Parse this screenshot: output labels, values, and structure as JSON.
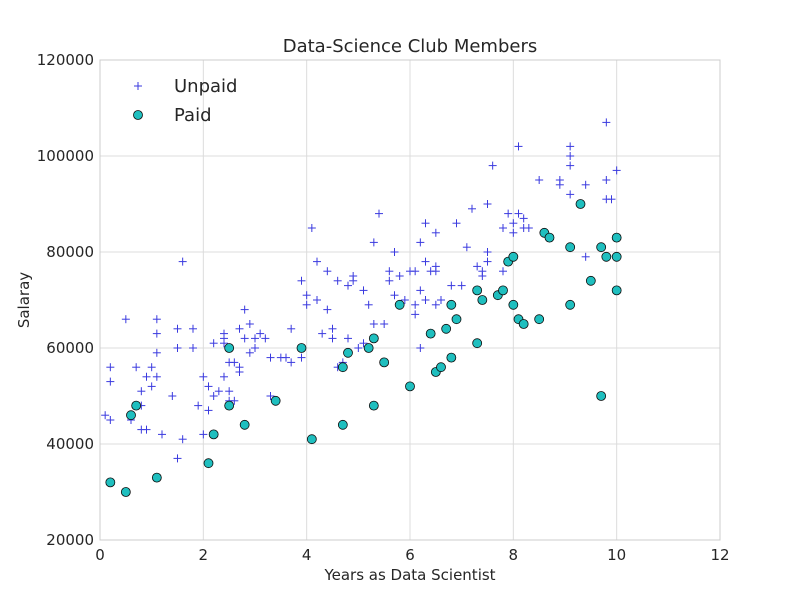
{
  "chart_data": {
    "type": "scatter",
    "title": "Data-Science Club Members",
    "xlabel": "Years as Data Scientist",
    "ylabel": "Salaray",
    "xlim": [
      0,
      12
    ],
    "ylim": [
      20000,
      120000
    ],
    "xticks": [
      "0",
      "2",
      "4",
      "6",
      "8",
      "10",
      "12"
    ],
    "yticks": [
      "20000",
      "40000",
      "60000",
      "80000",
      "100000",
      "120000"
    ],
    "grid": true,
    "legend_position": "top-left",
    "colors": {
      "unpaid": "#3a3adf",
      "paid_fill": "#1fbfbf",
      "paid_edge": "#0c0c0c",
      "grid": "#dcdcdc",
      "frame": "#cccccc"
    },
    "series": [
      {
        "name": "Unpaid",
        "marker": "plus",
        "points": [
          [
            0.1,
            46000
          ],
          [
            0.2,
            45000
          ],
          [
            0.2,
            53000
          ],
          [
            0.2,
            56000
          ],
          [
            0.5,
            66000
          ],
          [
            0.6,
            45000
          ],
          [
            0.7,
            56000
          ],
          [
            0.8,
            51000
          ],
          [
            0.8,
            43000
          ],
          [
            0.8,
            48000
          ],
          [
            0.9,
            43000
          ],
          [
            0.9,
            54000
          ],
          [
            1.0,
            56000
          ],
          [
            1.0,
            52000
          ],
          [
            1.1,
            66000
          ],
          [
            1.1,
            63000
          ],
          [
            1.1,
            59000
          ],
          [
            1.1,
            54000
          ],
          [
            1.2,
            42000
          ],
          [
            1.4,
            50000
          ],
          [
            1.5,
            64000
          ],
          [
            1.5,
            60000
          ],
          [
            1.5,
            37000
          ],
          [
            1.6,
            78000
          ],
          [
            1.6,
            41000
          ],
          [
            1.8,
            64000
          ],
          [
            1.8,
            60000
          ],
          [
            1.9,
            48000
          ],
          [
            2.0,
            54000
          ],
          [
            2.0,
            42000
          ],
          [
            2.1,
            52000
          ],
          [
            2.1,
            47000
          ],
          [
            2.2,
            61000
          ],
          [
            2.2,
            50000
          ],
          [
            2.3,
            51000
          ],
          [
            2.4,
            62000
          ],
          [
            2.4,
            63000
          ],
          [
            2.4,
            61000
          ],
          [
            2.4,
            54000
          ],
          [
            2.5,
            57000
          ],
          [
            2.5,
            51000
          ],
          [
            2.5,
            49000
          ],
          [
            2.6,
            49000
          ],
          [
            2.6,
            57000
          ],
          [
            2.7,
            55000
          ],
          [
            2.7,
            56000
          ],
          [
            2.7,
            64000
          ],
          [
            2.8,
            68000
          ],
          [
            2.8,
            62000
          ],
          [
            2.9,
            59000
          ],
          [
            2.9,
            65000
          ],
          [
            3.0,
            60000
          ],
          [
            3.0,
            62000
          ],
          [
            3.1,
            63000
          ],
          [
            3.2,
            62000
          ],
          [
            3.3,
            58000
          ],
          [
            3.3,
            50000
          ],
          [
            3.5,
            58000
          ],
          [
            3.6,
            58000
          ],
          [
            3.7,
            64000
          ],
          [
            3.7,
            57000
          ],
          [
            3.9,
            74000
          ],
          [
            3.9,
            58000
          ],
          [
            4.0,
            71000
          ],
          [
            4.0,
            69000
          ],
          [
            4.1,
            85000
          ],
          [
            4.2,
            70000
          ],
          [
            4.2,
            78000
          ],
          [
            4.3,
            63000
          ],
          [
            4.4,
            76000
          ],
          [
            4.4,
            68000
          ],
          [
            4.5,
            62000
          ],
          [
            4.5,
            64000
          ],
          [
            4.6,
            56000
          ],
          [
            4.6,
            74000
          ],
          [
            4.7,
            57000
          ],
          [
            4.8,
            62000
          ],
          [
            4.8,
            73000
          ],
          [
            4.9,
            75000
          ],
          [
            4.9,
            74000
          ],
          [
            5.0,
            60000
          ],
          [
            5.1,
            72000
          ],
          [
            5.1,
            61000
          ],
          [
            5.2,
            69000
          ],
          [
            5.3,
            65000
          ],
          [
            5.3,
            82000
          ],
          [
            5.4,
            88000
          ],
          [
            5.5,
            65000
          ],
          [
            5.6,
            76000
          ],
          [
            5.6,
            74000
          ],
          [
            5.7,
            80000
          ],
          [
            5.7,
            71000
          ],
          [
            5.8,
            75000
          ],
          [
            5.9,
            70000
          ],
          [
            6.0,
            76000
          ],
          [
            6.1,
            76000
          ],
          [
            6.1,
            69000
          ],
          [
            6.1,
            67000
          ],
          [
            6.2,
            60000
          ],
          [
            6.2,
            82000
          ],
          [
            6.2,
            72000
          ],
          [
            6.3,
            70000
          ],
          [
            6.3,
            86000
          ],
          [
            6.3,
            78000
          ],
          [
            6.4,
            76000
          ],
          [
            6.5,
            84000
          ],
          [
            6.5,
            77000
          ],
          [
            6.5,
            76000
          ],
          [
            6.5,
            69000
          ],
          [
            6.6,
            70000
          ],
          [
            6.8,
            73000
          ],
          [
            6.9,
            86000
          ],
          [
            7.0,
            73000
          ],
          [
            7.1,
            81000
          ],
          [
            7.2,
            89000
          ],
          [
            7.3,
            77000
          ],
          [
            7.4,
            76000
          ],
          [
            7.4,
            75000
          ],
          [
            7.5,
            90000
          ],
          [
            7.5,
            80000
          ],
          [
            7.5,
            78000
          ],
          [
            7.6,
            98000
          ],
          [
            7.8,
            85000
          ],
          [
            7.8,
            76000
          ],
          [
            7.9,
            88000
          ],
          [
            8.0,
            86000
          ],
          [
            8.0,
            84000
          ],
          [
            8.1,
            102000
          ],
          [
            8.1,
            88000
          ],
          [
            8.2,
            87000
          ],
          [
            8.2,
            85000
          ],
          [
            8.3,
            85000
          ],
          [
            8.5,
            95000
          ],
          [
            8.9,
            95000
          ],
          [
            8.9,
            94000
          ],
          [
            9.1,
            102000
          ],
          [
            9.1,
            100000
          ],
          [
            9.1,
            98000
          ],
          [
            9.1,
            92000
          ],
          [
            9.4,
            94000
          ],
          [
            9.4,
            79000
          ],
          [
            9.8,
            107000
          ],
          [
            9.8,
            95000
          ],
          [
            9.8,
            91000
          ],
          [
            9.9,
            91000
          ],
          [
            10.0,
            97000
          ]
        ]
      },
      {
        "name": "Paid",
        "marker": "circle",
        "points": [
          [
            0.2,
            32000
          ],
          [
            0.5,
            30000
          ],
          [
            0.6,
            46000
          ],
          [
            0.7,
            48000
          ],
          [
            1.1,
            33000
          ],
          [
            2.1,
            36000
          ],
          [
            2.2,
            42000
          ],
          [
            2.5,
            48000
          ],
          [
            2.5,
            60000
          ],
          [
            2.8,
            44000
          ],
          [
            3.4,
            49000
          ],
          [
            3.9,
            60000
          ],
          [
            4.1,
            41000
          ],
          [
            4.7,
            44000
          ],
          [
            4.7,
            56000
          ],
          [
            4.8,
            59000
          ],
          [
            5.2,
            60000
          ],
          [
            5.3,
            48000
          ],
          [
            5.3,
            62000
          ],
          [
            5.5,
            57000
          ],
          [
            5.8,
            69000
          ],
          [
            6.0,
            52000
          ],
          [
            6.4,
            63000
          ],
          [
            6.5,
            55000
          ],
          [
            6.6,
            56000
          ],
          [
            6.7,
            64000
          ],
          [
            6.8,
            58000
          ],
          [
            6.8,
            69000
          ],
          [
            6.9,
            66000
          ],
          [
            7.3,
            61000
          ],
          [
            7.3,
            72000
          ],
          [
            7.4,
            70000
          ],
          [
            7.7,
            71000
          ],
          [
            7.8,
            72000
          ],
          [
            7.9,
            78000
          ],
          [
            8.0,
            79000
          ],
          [
            8.0,
            69000
          ],
          [
            8.1,
            66000
          ],
          [
            8.2,
            65000
          ],
          [
            8.5,
            66000
          ],
          [
            8.6,
            84000
          ],
          [
            8.7,
            83000
          ],
          [
            9.1,
            81000
          ],
          [
            9.1,
            69000
          ],
          [
            9.3,
            90000
          ],
          [
            9.5,
            74000
          ],
          [
            9.7,
            81000
          ],
          [
            9.7,
            50000
          ],
          [
            9.8,
            79000
          ],
          [
            10.0,
            83000
          ],
          [
            10.0,
            79000
          ],
          [
            10.0,
            72000
          ]
        ]
      }
    ]
  }
}
